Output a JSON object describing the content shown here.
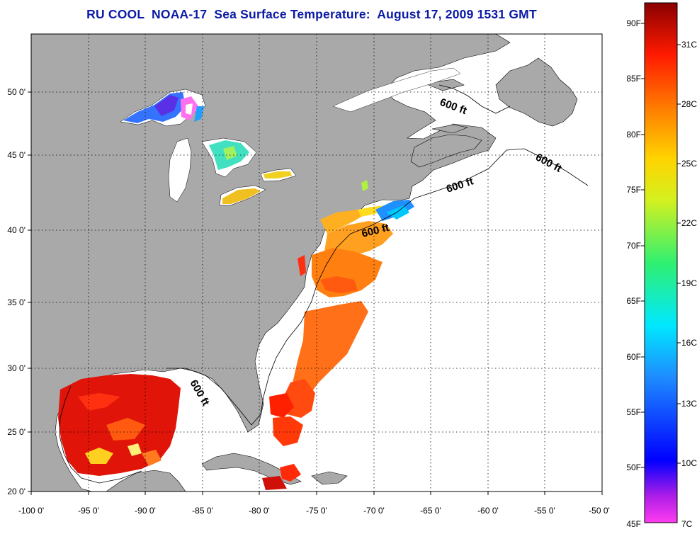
{
  "title": "RU COOL  NOAA-17  Sea Surface Temperature:  August 17, 2009 1531 GMT",
  "map": {
    "x_ticks": [
      "-100 0'",
      "-95 0'",
      "-90 0'",
      "-85 0'",
      "-80 0'",
      "-75 0'",
      "-70 0'",
      "-65 0'",
      "-60 0'",
      "-55 0'",
      "-50 0'"
    ],
    "y_ticks": [
      "50 0'",
      "45 0'",
      "40 0'",
      "35 0'",
      "30 0'",
      "25 0'",
      "20 0'"
    ],
    "contour_labels": [
      "600 ft",
      "600 ft",
      "600 ft",
      "600 ft",
      "600 ft"
    ]
  },
  "colorbar": {
    "fahrenheit": [
      "90F",
      "85F",
      "80F",
      "75F",
      "70F",
      "65F",
      "60F",
      "55F",
      "50F",
      "45F"
    ],
    "celsius": [
      "31C",
      "28C",
      "25C",
      "22C",
      "19C",
      "16C",
      "13C",
      "10C",
      "7C"
    ]
  },
  "colors": {
    "land": "#a9a9a9",
    "ocean_nodata": "#ffffff",
    "title": "#0a1aa6"
  }
}
